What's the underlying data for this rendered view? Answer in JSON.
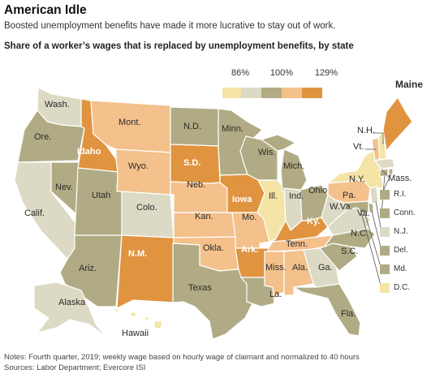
{
  "header": {
    "title": "American Idle",
    "subtitle": "Boosted unemployment benefits have made it more lucrative to stay out of work.",
    "map_title": "Share of a worker’s wages that is replaced by unemployment benefits, by state"
  },
  "legend": {
    "ticks": [
      "86%",
      "100%",
      "129%"
    ],
    "colors": [
      "#f4e4a6",
      "#dcd9c4",
      "#b0ab84",
      "#f4c08b",
      "#e09440"
    ]
  },
  "colors": {
    "c1": "#f4e4a6",
    "c2": "#dcd9c4",
    "c3": "#b0ab84",
    "c4": "#f4c08b",
    "c5": "#e09440"
  },
  "states": {
    "wa": "Wash.",
    "or": "Ore.",
    "ca": "Calif.",
    "nv": "Nev.",
    "id": "Idaho",
    "mt": "Mont.",
    "wy": "Wyo.",
    "ut": "Utah",
    "az": "Ariz.",
    "co": "Colo.",
    "nm": "N.M.",
    "nd": "N.D.",
    "sd": "S.D.",
    "ne": "Neb.",
    "ks": "Kan.",
    "ok": "Okla.",
    "tx": "Texas",
    "mn": "Minn.",
    "ia": "Iowa",
    "mo": "Mo.",
    "ar": "Ark.",
    "la": "La.",
    "wi": "Wis.",
    "il": "Ill.",
    "mi": "Mich.",
    "in": "Ind.",
    "oh": "Ohio",
    "ky": "Ky.",
    "tn": "Tenn.",
    "ms": "Miss.",
    "al": "Ala.",
    "ga": "Ga.",
    "fl": "Fla.",
    "sc": "S.C.",
    "nc": "N.C.",
    "va": "Va.",
    "wv": "W.Va.",
    "pa": "Pa.",
    "ny": "N.Y.",
    "vt": "Vt.",
    "nh": "N.H.",
    "me": "Maine",
    "ma": "Mass.",
    "ak": "Alaska",
    "hi": "Hawaii"
  },
  "side_states": [
    "R.I.",
    "Conn.",
    "N.J.",
    "Del.",
    "Md.",
    "D.C."
  ],
  "notes": {
    "line1": "Notes: Fourth quarter, 2019; weekly wage based on hourly wage of claimant and normalized to 40 hours",
    "line2": "Sources: Labor Department;  Evercore ISI"
  }
}
